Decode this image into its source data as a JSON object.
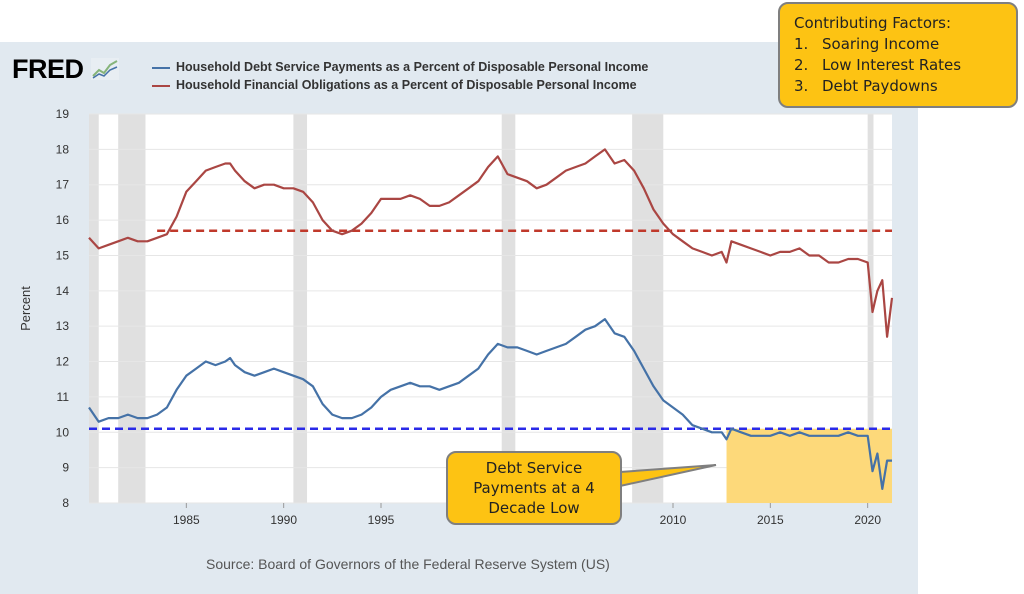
{
  "header": {
    "logo_text": "FRED",
    "logo_icon": "line-chart-icon"
  },
  "chart_data": {
    "type": "line",
    "ylabel": "Percent",
    "xlim": [
      1980.0,
      2021.25
    ],
    "ylim": [
      8,
      19
    ],
    "yticks": [
      8,
      9,
      10,
      11,
      12,
      13,
      14,
      15,
      16,
      17,
      18,
      19
    ],
    "xticks": [
      1985,
      1990,
      1995,
      2000,
      2005,
      2010,
      2015,
      2020
    ],
    "grid": "horizontal",
    "recessions": [
      [
        1980.0,
        1980.5
      ],
      [
        1981.5,
        1982.9
      ],
      [
        1990.5,
        1991.2
      ],
      [
        2001.2,
        2001.9
      ],
      [
        2007.9,
        2009.5
      ],
      [
        2020.0,
        2020.3
      ]
    ],
    "series": [
      {
        "name": "Household Debt Service Payments as a Percent of Disposable Personal Income",
        "color": "#4572a7",
        "x": [
          1980.0,
          1980.5,
          1981.0,
          1981.5,
          1982.0,
          1982.5,
          1983.0,
          1983.5,
          1984.0,
          1984.5,
          1985.0,
          1985.5,
          1986.0,
          1986.5,
          1987.0,
          1987.25,
          1987.5,
          1988.0,
          1988.5,
          1989.0,
          1989.5,
          1990.0,
          1990.5,
          1991.0,
          1991.5,
          1992.0,
          1992.5,
          1993.0,
          1993.5,
          1994.0,
          1994.5,
          1995.0,
          1995.5,
          1996.0,
          1996.5,
          1997.0,
          1997.5,
          1998.0,
          1998.5,
          1999.0,
          1999.5,
          2000.0,
          2000.5,
          2001.0,
          2001.5,
          2002.0,
          2002.5,
          2003.0,
          2003.5,
          2004.0,
          2004.5,
          2005.0,
          2005.5,
          2006.0,
          2006.5,
          2007.0,
          2007.5,
          2008.0,
          2008.5,
          2009.0,
          2009.5,
          2010.0,
          2010.5,
          2011.0,
          2011.5,
          2012.0,
          2012.5,
          2012.75,
          2013.0,
          2013.5,
          2014.0,
          2014.5,
          2015.0,
          2015.5,
          2016.0,
          2016.5,
          2017.0,
          2017.5,
          2018.0,
          2018.5,
          2019.0,
          2019.5,
          2020.0,
          2020.25,
          2020.5,
          2020.75,
          2021.0,
          2021.25
        ],
        "values": [
          10.7,
          10.3,
          10.4,
          10.4,
          10.5,
          10.4,
          10.4,
          10.5,
          10.7,
          11.2,
          11.6,
          11.8,
          12.0,
          11.9,
          12.0,
          12.1,
          11.9,
          11.7,
          11.6,
          11.7,
          11.8,
          11.7,
          11.6,
          11.5,
          11.3,
          10.8,
          10.5,
          10.4,
          10.4,
          10.5,
          10.7,
          11.0,
          11.2,
          11.3,
          11.4,
          11.3,
          11.3,
          11.2,
          11.3,
          11.4,
          11.6,
          11.8,
          12.2,
          12.5,
          12.4,
          12.4,
          12.3,
          12.2,
          12.3,
          12.4,
          12.5,
          12.7,
          12.9,
          13.0,
          13.2,
          12.8,
          12.7,
          12.3,
          11.8,
          11.3,
          10.9,
          10.7,
          10.5,
          10.2,
          10.1,
          10.0,
          10.0,
          9.8,
          10.1,
          10.0,
          9.9,
          9.9,
          9.9,
          10.0,
          9.9,
          10.0,
          9.9,
          9.9,
          9.9,
          9.9,
          10.0,
          9.9,
          9.9,
          8.9,
          9.4,
          8.4,
          9.2,
          9.2
        ]
      },
      {
        "name": "Household Financial Obligations as a Percent of Disposable Personal Income",
        "color": "#aa4643",
        "x": [
          1980.0,
          1980.5,
          1981.0,
          1981.5,
          1982.0,
          1982.5,
          1983.0,
          1983.5,
          1984.0,
          1984.5,
          1985.0,
          1985.5,
          1986.0,
          1986.5,
          1987.0,
          1987.25,
          1987.5,
          1988.0,
          1988.5,
          1989.0,
          1989.5,
          1990.0,
          1990.5,
          1991.0,
          1991.5,
          1992.0,
          1992.5,
          1993.0,
          1993.5,
          1994.0,
          1994.5,
          1995.0,
          1995.5,
          1996.0,
          1996.5,
          1997.0,
          1997.5,
          1998.0,
          1998.5,
          1999.0,
          1999.5,
          2000.0,
          2000.5,
          2001.0,
          2001.5,
          2002.0,
          2002.5,
          2003.0,
          2003.5,
          2004.0,
          2004.5,
          2005.0,
          2005.5,
          2006.0,
          2006.5,
          2007.0,
          2007.5,
          2008.0,
          2008.5,
          2009.0,
          2009.5,
          2010.0,
          2010.5,
          2011.0,
          2011.5,
          2012.0,
          2012.5,
          2012.75,
          2013.0,
          2013.5,
          2014.0,
          2014.5,
          2015.0,
          2015.5,
          2016.0,
          2016.5,
          2017.0,
          2017.5,
          2018.0,
          2018.5,
          2019.0,
          2019.5,
          2020.0,
          2020.25,
          2020.5,
          2020.75,
          2021.0,
          2021.25
        ],
        "values": [
          15.5,
          15.2,
          15.3,
          15.4,
          15.5,
          15.4,
          15.4,
          15.5,
          15.6,
          16.1,
          16.8,
          17.1,
          17.4,
          17.5,
          17.6,
          17.6,
          17.4,
          17.1,
          16.9,
          17.0,
          17.0,
          16.9,
          16.9,
          16.8,
          16.5,
          16.0,
          15.7,
          15.6,
          15.7,
          15.9,
          16.2,
          16.6,
          16.6,
          16.6,
          16.7,
          16.6,
          16.4,
          16.4,
          16.5,
          16.7,
          16.9,
          17.1,
          17.5,
          17.8,
          17.3,
          17.2,
          17.1,
          16.9,
          17.0,
          17.2,
          17.4,
          17.5,
          17.6,
          17.8,
          18.0,
          17.6,
          17.7,
          17.4,
          16.9,
          16.3,
          15.9,
          15.6,
          15.4,
          15.2,
          15.1,
          15.0,
          15.1,
          14.8,
          15.4,
          15.3,
          15.2,
          15.1,
          15.0,
          15.1,
          15.1,
          15.2,
          15.0,
          15.0,
          14.8,
          14.8,
          14.9,
          14.9,
          14.8,
          13.4,
          14.0,
          14.3,
          12.7,
          13.8
        ]
      }
    ],
    "reference_lines": [
      {
        "y": 15.7,
        "color": "#c0392b",
        "style": "dashed",
        "from": 1983.5,
        "to": 2021.25
      },
      {
        "y": 10.1,
        "color": "#2a2ae8",
        "style": "dashed",
        "from": 1980.0,
        "to": 2021.25
      }
    ],
    "highlight_region": {
      "from": 2012.75,
      "to": 2021.25,
      "ymin": 8,
      "ymax": 10.1,
      "color": "#fdd97a"
    },
    "source": "Source: Board of Governors of the Federal Reserve System (US)"
  },
  "annotations": {
    "factors": {
      "title": "Contributing Factors:",
      "items": [
        {
          "num": "1.",
          "text": "Soaring Income"
        },
        {
          "num": "2.",
          "text": "Low Interest Rates"
        },
        {
          "num": "3.",
          "text": "Debt Paydowns"
        }
      ]
    },
    "debt_callout": {
      "line1": "Debt Service",
      "line2": "Payments at a 4",
      "line3": "Decade Low"
    }
  },
  "colors": {
    "frame_bg": "#e1e9f0",
    "plot_bg": "#ffffff",
    "recession": "#e0e0e0",
    "callout": "#fdc313",
    "callout_border": "#7f7f7f"
  }
}
